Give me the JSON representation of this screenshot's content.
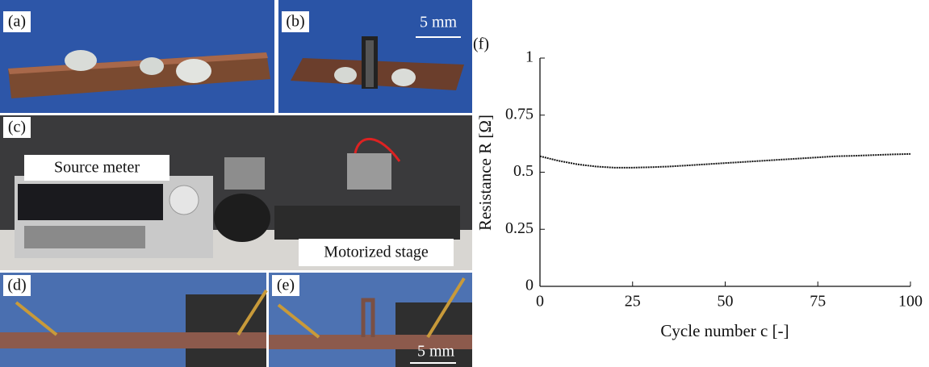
{
  "panels": [
    {
      "label": "(a)"
    },
    {
      "label": "(b)",
      "scale_bar": "5 mm"
    },
    {
      "label": "(c)",
      "annotations": [
        "Source meter",
        "Motorized  stage"
      ]
    },
    {
      "label": "(d)"
    },
    {
      "label": "(e)",
      "scale_bar": "5 mm"
    }
  ],
  "chart_data": {
    "type": "line",
    "panel_label": "(f)",
    "xlabel": "Cycle number c [-]",
    "ylabel": "Resistance R [Ω]",
    "x": [
      0,
      5,
      10,
      15,
      20,
      25,
      30,
      35,
      40,
      45,
      50,
      55,
      60,
      65,
      70,
      75,
      80,
      85,
      90,
      95,
      100
    ],
    "values": [
      0.57,
      0.55,
      0.535,
      0.525,
      0.52,
      0.52,
      0.522,
      0.525,
      0.53,
      0.535,
      0.54,
      0.545,
      0.55,
      0.555,
      0.56,
      0.565,
      0.57,
      0.572,
      0.575,
      0.578,
      0.58
    ],
    "color": "#111111",
    "xlim": [
      0,
      100
    ],
    "xticks": [
      0,
      25,
      50,
      75,
      100
    ],
    "ylim": [
      0,
      1
    ],
    "yticks": [
      0,
      0.25,
      0.5,
      0.75,
      1
    ]
  }
}
